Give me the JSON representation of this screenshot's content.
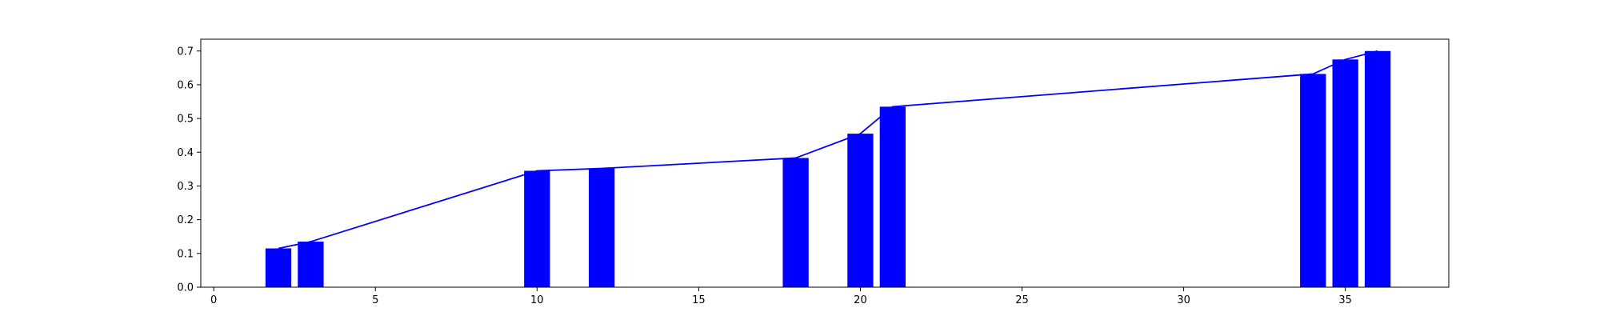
{
  "chart_data": {
    "type": "bar",
    "title": "",
    "xlabel": "",
    "ylabel": "",
    "xlim": [
      -0.4,
      38.2
    ],
    "ylim": [
      0.0,
      0.735
    ],
    "xticks": [
      0,
      5,
      10,
      15,
      20,
      25,
      30,
      35
    ],
    "xtick_labels": [
      "0",
      "5",
      "10",
      "15",
      "20",
      "25",
      "30",
      "35"
    ],
    "yticks": [
      0.0,
      0.1,
      0.2,
      0.3,
      0.4,
      0.5,
      0.6,
      0.7
    ],
    "ytick_labels": [
      "0.0",
      "0.1",
      "0.2",
      "0.3",
      "0.4",
      "0.5",
      "0.6",
      "0.7"
    ],
    "grid": false,
    "legend": "none",
    "bar_width": 0.8,
    "bar_color": "#0000ff",
    "line_color": "#0000ff",
    "x": [
      2,
      3,
      10,
      12,
      18,
      20,
      21,
      34,
      35,
      36
    ],
    "values": [
      0.115,
      0.135,
      0.345,
      0.352,
      0.383,
      0.455,
      0.535,
      0.632,
      0.675,
      0.7
    ],
    "overlay_line": true
  }
}
